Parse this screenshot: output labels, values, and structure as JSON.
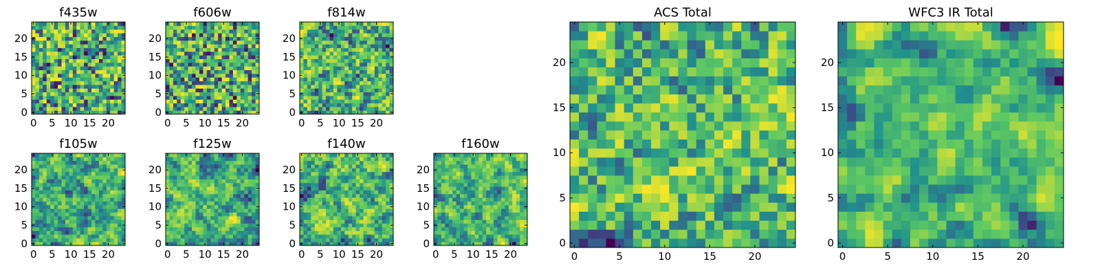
{
  "chart_data": [
    {
      "type": "heatmap",
      "title": "f435w",
      "xticks": [
        "0",
        "5",
        "10",
        "15",
        "20"
      ],
      "yticks": [
        "0",
        "5",
        "10",
        "15",
        "20"
      ],
      "xlim": [
        -0.5,
        24.5
      ],
      "ylim": [
        -0.5,
        24.5
      ],
      "grid": false,
      "colormap": "viridis",
      "seed": 11,
      "smooth": 0
    },
    {
      "type": "heatmap",
      "title": "f606w",
      "xticks": [
        "0",
        "5",
        "10",
        "15",
        "20"
      ],
      "yticks": [
        "0",
        "5",
        "10",
        "15",
        "20"
      ],
      "xlim": [
        -0.5,
        24.5
      ],
      "ylim": [
        -0.5,
        24.5
      ],
      "grid": false,
      "colormap": "viridis",
      "seed": 23,
      "smooth": 0
    },
    {
      "type": "heatmap",
      "title": "f814w",
      "xticks": [
        "0",
        "5",
        "10",
        "15",
        "20"
      ],
      "yticks": [
        "0",
        "5",
        "10",
        "15",
        "20"
      ],
      "xlim": [
        -0.5,
        24.5
      ],
      "ylim": [
        -0.5,
        24.5
      ],
      "grid": false,
      "colormap": "viridis",
      "seed": 37,
      "smooth": 1
    },
    {
      "type": "heatmap",
      "title": "f105w",
      "xticks": [
        "0",
        "5",
        "10",
        "15",
        "20"
      ],
      "yticks": [
        "0",
        "5",
        "10",
        "15",
        "20"
      ],
      "xlim": [
        -0.5,
        24.5
      ],
      "ylim": [
        -0.5,
        24.5
      ],
      "grid": false,
      "colormap": "viridis",
      "seed": 41,
      "smooth": 2
    },
    {
      "type": "heatmap",
      "title": "f125w",
      "xticks": [
        "0",
        "5",
        "10",
        "15",
        "20"
      ],
      "yticks": [
        "0",
        "5",
        "10",
        "15",
        "20"
      ],
      "xlim": [
        -0.5,
        24.5
      ],
      "ylim": [
        -0.5,
        24.5
      ],
      "grid": false,
      "colormap": "viridis",
      "seed": 53,
      "smooth": 2
    },
    {
      "type": "heatmap",
      "title": "f140w",
      "xticks": [
        "0",
        "5",
        "10",
        "15",
        "20"
      ],
      "yticks": [
        "0",
        "5",
        "10",
        "15",
        "20"
      ],
      "xlim": [
        -0.5,
        24.5
      ],
      "ylim": [
        -0.5,
        24.5
      ],
      "grid": false,
      "colormap": "viridis",
      "seed": 67,
      "smooth": 2
    },
    {
      "type": "heatmap",
      "title": "f160w",
      "xticks": [
        "0",
        "5",
        "10",
        "15",
        "20"
      ],
      "yticks": [
        "0",
        "5",
        "10",
        "15",
        "20"
      ],
      "xlim": [
        -0.5,
        24.5
      ],
      "ylim": [
        -0.5,
        24.5
      ],
      "grid": false,
      "colormap": "viridis",
      "seed": 79,
      "smooth": 2
    },
    {
      "type": "heatmap",
      "title": "ACS Total",
      "xticks": [
        "0",
        "5",
        "10",
        "15",
        "20"
      ],
      "yticks": [
        "0",
        "5",
        "10",
        "15",
        "20"
      ],
      "xlim": [
        -0.5,
        24.5
      ],
      "ylim": [
        -0.5,
        24.5
      ],
      "grid": false,
      "colormap": "viridis",
      "seed": 97,
      "smooth": 1
    },
    {
      "type": "heatmap",
      "title": "WFC3 IR Total",
      "xticks": [
        "0",
        "5",
        "10",
        "15",
        "20"
      ],
      "yticks": [
        "0",
        "5",
        "10",
        "15",
        "20"
      ],
      "xlim": [
        -0.5,
        24.5
      ],
      "ylim": [
        -0.5,
        24.5
      ],
      "grid": false,
      "colormap": "viridis",
      "seed": 113,
      "smooth": 3
    }
  ],
  "colors": {
    "viridis_stops": [
      "#440154",
      "#3b528b",
      "#21918c",
      "#5ec962",
      "#fde725"
    ]
  }
}
